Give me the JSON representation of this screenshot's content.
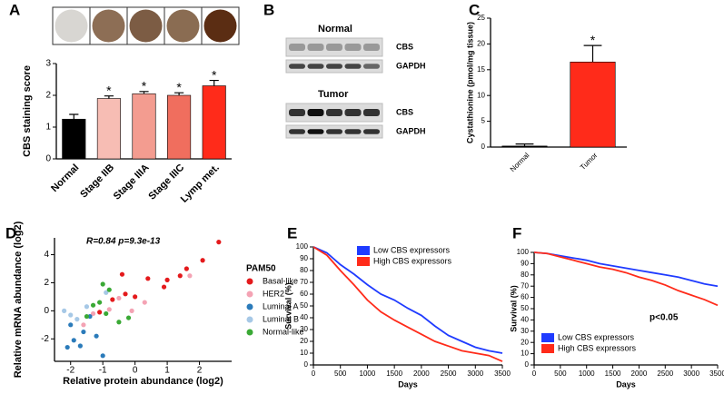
{
  "chart_data": [
    {
      "type": "bar",
      "panel": "A",
      "y_label": "CBS staining score",
      "categories": [
        "Normal",
        "Stage IIB",
        "Stage IIIA",
        "Stage IIIC",
        "Lymp met."
      ],
      "values": [
        1.25,
        1.9,
        2.05,
        2.0,
        2.3
      ],
      "errors": [
        0.15,
        0.08,
        0.07,
        0.08,
        0.17
      ],
      "bar_labels": [
        null,
        "*",
        "*",
        "*",
        "*"
      ],
      "colors": [
        "#000000",
        "#f7bdb4",
        "#f39c90",
        "#f06e5e",
        "#ff2b1a"
      ],
      "ylim": [
        0,
        3
      ],
      "yticks": [
        0,
        1,
        2,
        3
      ]
    },
    {
      "type": "bar",
      "panel": "C",
      "y_label": "Cystathionine (pmol/mg tissue)",
      "categories": [
        "Normal",
        "Tumor"
      ],
      "values": [
        0.2,
        16.5
      ],
      "errors": [
        0.4,
        3.2
      ],
      "bar_labels": [
        null,
        "*"
      ],
      "colors": [
        "#000000",
        "#ff2b1a"
      ],
      "ylim": [
        0,
        25
      ],
      "yticks": [
        0,
        5,
        10,
        15,
        20,
        25
      ]
    },
    {
      "type": "scatter",
      "panel": "D",
      "title": "R=0.84 p=9.3e-13",
      "x_label": "Relative protein abundance (log2)",
      "y_label": "Relative mRNA abundance (log2)",
      "legend_title": "PAM50",
      "legend": "right",
      "xlim": [
        -2.5,
        3
      ],
      "xticks": [
        -2,
        -1,
        0,
        1,
        2
      ],
      "ylim": [
        -3.6,
        5.2
      ],
      "yticks": [
        -2,
        0,
        2,
        4
      ],
      "series": [
        {
          "name": "Basal-like",
          "color": "#e41a1c",
          "x": [
            2.6,
            2.1,
            1.6,
            1.4,
            1.0,
            0.4,
            -0.4,
            0.9,
            0.0,
            -0.3,
            -0.7,
            -1.1
          ],
          "values": [
            4.9,
            3.6,
            3.0,
            2.5,
            2.2,
            2.3,
            2.6,
            1.7,
            1.0,
            1.2,
            0.8,
            -0.1
          ]
        },
        {
          "name": "HER2",
          "color": "#f4a3b4",
          "x": [
            1.7,
            -0.1,
            -0.5,
            -1.3,
            -1.6,
            -0.8,
            0.3
          ],
          "values": [
            2.5,
            0.0,
            0.9,
            -0.2,
            -1.0,
            0.1,
            0.6
          ]
        },
        {
          "name": "Luminal A",
          "color": "#2b7bba",
          "x": [
            -1.9,
            -2.1,
            -1.7,
            -1.0,
            -1.6,
            -1.2,
            -2.0,
            -1.4
          ],
          "values": [
            -2.1,
            -2.6,
            -2.5,
            -3.2,
            -1.5,
            -1.8,
            -1.0,
            -0.4
          ]
        },
        {
          "name": "Luminal B",
          "color": "#a6c8e6",
          "x": [
            -2.2,
            -1.8,
            -0.9,
            -1.5,
            -2.0
          ],
          "values": [
            0.0,
            -0.6,
            1.3,
            0.3,
            -0.3
          ]
        },
        {
          "name": "Normal-like",
          "color": "#3aa935",
          "x": [
            -1.0,
            -0.8,
            -1.1,
            -0.5,
            -1.5,
            -0.2,
            -0.9,
            -1.3
          ],
          "values": [
            1.9,
            1.5,
            0.6,
            -0.8,
            -0.4,
            -0.5,
            -0.2,
            0.4
          ]
        }
      ]
    },
    {
      "type": "line",
      "panel": "E",
      "x_label": "Days",
      "y_label": "Survival (%)",
      "legend": "top-right",
      "x": [
        0,
        250,
        500,
        750,
        1000,
        1250,
        1500,
        1750,
        2000,
        2250,
        2500,
        2750,
        3000,
        3250,
        3500
      ],
      "xlim": [
        0,
        3500
      ],
      "xticks": [
        0,
        500,
        1000,
        1500,
        2000,
        2500,
        3000,
        3500
      ],
      "ylim": [
        0,
        100
      ],
      "yticks": [
        0,
        10,
        20,
        30,
        40,
        50,
        60,
        70,
        80,
        90,
        100
      ],
      "series": [
        {
          "name": "Low CBS expressors",
          "color": "#1f3bff",
          "values": [
            100,
            95,
            85,
            77,
            68,
            60,
            55,
            48,
            42,
            33,
            25,
            20,
            15,
            12,
            10
          ]
        },
        {
          "name": "High CBS expressors",
          "color": "#ff2b1a",
          "values": [
            100,
            93,
            80,
            68,
            55,
            45,
            38,
            32,
            26,
            20,
            16,
            12,
            10,
            8,
            3
          ]
        }
      ]
    },
    {
      "type": "line",
      "panel": "F",
      "x_label": "Days",
      "y_label": "Survival (%)",
      "legend": "bottom-left",
      "annotation": "p<0.05",
      "x": [
        0,
        250,
        500,
        750,
        1000,
        1250,
        1500,
        1750,
        2000,
        2250,
        2500,
        2750,
        3000,
        3250,
        3500
      ],
      "xlim": [
        0,
        3500
      ],
      "xticks": [
        0,
        500,
        1000,
        1500,
        2000,
        2500,
        3000,
        3500
      ],
      "ylim": [
        0,
        100
      ],
      "yticks": [
        0,
        10,
        20,
        30,
        40,
        50,
        60,
        70,
        80,
        90,
        100
      ],
      "series": [
        {
          "name": "Low CBS expressors",
          "color": "#1f3bff",
          "values": [
            100,
            99,
            97,
            95,
            93,
            90,
            88,
            86,
            84,
            82,
            80,
            78,
            75,
            72,
            70
          ]
        },
        {
          "name": "High CBS expressors",
          "color": "#ff2b1a",
          "values": [
            100,
            99,
            96,
            93,
            90,
            87,
            85,
            82,
            78,
            75,
            71,
            66,
            62,
            58,
            53
          ]
        }
      ]
    }
  ],
  "blot": {
    "panel": "B",
    "groups": [
      {
        "title": "Normal",
        "bands": [
          "CBS",
          "GAPDH"
        ]
      },
      {
        "title": "Tumor",
        "bands": [
          "CBS",
          "GAPDH"
        ]
      }
    ]
  }
}
